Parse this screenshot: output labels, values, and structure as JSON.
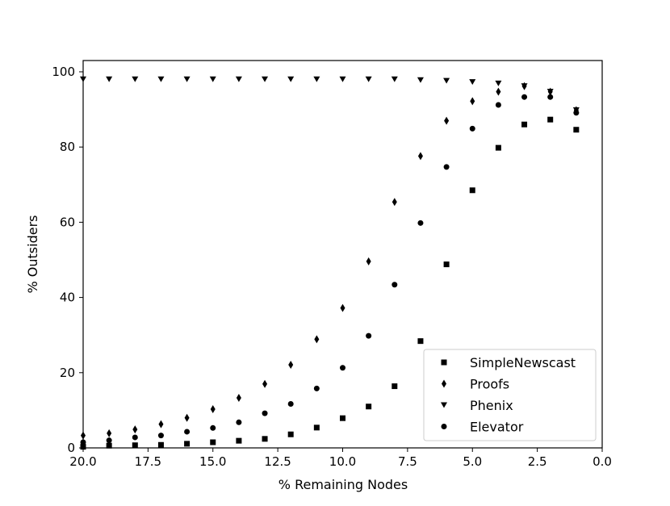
{
  "chart_data": {
    "type": "scatter",
    "title": "",
    "xlabel": "% Remaining Nodes",
    "ylabel": "% Outsiders",
    "xlim": [
      20,
      0
    ],
    "ylim": [
      0,
      103
    ],
    "x_reversed": true,
    "grid": false,
    "x_ticks": [
      "20.0",
      "17.5",
      "15.0",
      "12.5",
      "10.0",
      "7.5",
      "5.0",
      "2.5",
      "0.0"
    ],
    "x_tick_values": [
      20,
      17.5,
      15,
      12.5,
      10,
      7.5,
      5,
      2.5,
      0
    ],
    "y_ticks": [
      "0",
      "20",
      "40",
      "60",
      "80",
      "100"
    ],
    "y_tick_values": [
      0,
      20,
      40,
      60,
      80,
      100
    ],
    "legend_position": "lower-right",
    "x": [
      20,
      19,
      18,
      17,
      16,
      15,
      14,
      13,
      12,
      11,
      10,
      9,
      8,
      7,
      6,
      5,
      4,
      3,
      2,
      1
    ],
    "series": [
      {
        "name": "SimpleNewscast",
        "marker": "square",
        "color": "#000000",
        "values": [
          0.3,
          0.6,
          0.7,
          0.8,
          1.1,
          1.5,
          1.9,
          2.4,
          3.6,
          5.4,
          7.9,
          11.0,
          16.4,
          28.4,
          48.8,
          68.5,
          79.8,
          86.0,
          87.3,
          84.6
        ]
      },
      {
        "name": "Proofs",
        "marker": "diamond",
        "color": "#000000",
        "values": [
          3.3,
          3.9,
          4.9,
          6.3,
          8.0,
          10.3,
          13.3,
          17.0,
          22.1,
          28.9,
          37.2,
          49.6,
          65.4,
          77.6,
          87.0,
          92.2,
          94.7,
          96.2,
          94.7,
          89.8
        ]
      },
      {
        "name": "Phenix",
        "marker": "triangle-down",
        "color": "#000000",
        "values": [
          98.0,
          98.0,
          98.0,
          98.0,
          98.0,
          98.0,
          98.0,
          98.0,
          98.0,
          98.0,
          98.0,
          98.0,
          98.0,
          97.8,
          97.6,
          97.3,
          96.9,
          96.2,
          94.7,
          89.8
        ]
      },
      {
        "name": "Elevator",
        "marker": "circle",
        "color": "#000000",
        "values": [
          1.5,
          2.0,
          2.8,
          3.3,
          4.3,
          5.3,
          6.8,
          9.2,
          11.7,
          15.8,
          21.3,
          29.8,
          43.4,
          59.8,
          74.7,
          84.9,
          91.2,
          93.3,
          93.3,
          89.1
        ]
      }
    ]
  }
}
